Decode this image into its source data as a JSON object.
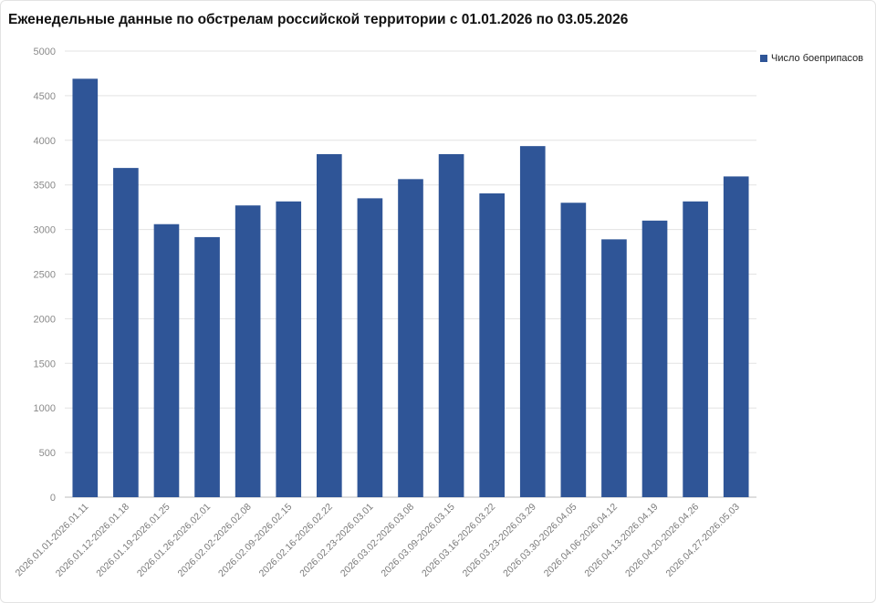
{
  "chart_data": {
    "type": "bar",
    "title": "Еженедельные данные по обстрелам российской территории с 01.01.2026 по 03.05.2026",
    "ylim": [
      0,
      5000
    ],
    "yticks": [
      0,
      500,
      1000,
      1500,
      2000,
      2500,
      3000,
      3500,
      4000,
      4500,
      5000
    ],
    "grid": true,
    "legend_position": "top-right",
    "categories": [
      "2026.01.01-2026.01.11",
      "2026.01.12-2026.01.18",
      "2026.01.19-2026.01.25",
      "2026.01.26-2026.02.01",
      "2026.02.02-2026.02.08",
      "2026.02.09-2026.02.15",
      "2026.02.16-2026.02.22",
      "2026.02.23-2026.03.01",
      "2026.03.02-2026.03.08",
      "2026.03.09-2026.03.15",
      "2026.03.16-2026.03.22",
      "2026.03.23-2026.03.29",
      "2026.03.30-2026.04.05",
      "2026.04.06-2026.04.12",
      "2026.04.13-2026.04.19",
      "2026.04.20-2026.04.26",
      "2026.04.27-2026.05.03"
    ],
    "series": [
      {
        "name": "Число боеприпасов",
        "color": "#2f5597",
        "values": [
          4690,
          3690,
          3060,
          2915,
          3270,
          3315,
          3845,
          3350,
          3565,
          3845,
          3405,
          3935,
          3300,
          2890,
          3100,
          3315,
          3595
        ]
      }
    ]
  }
}
